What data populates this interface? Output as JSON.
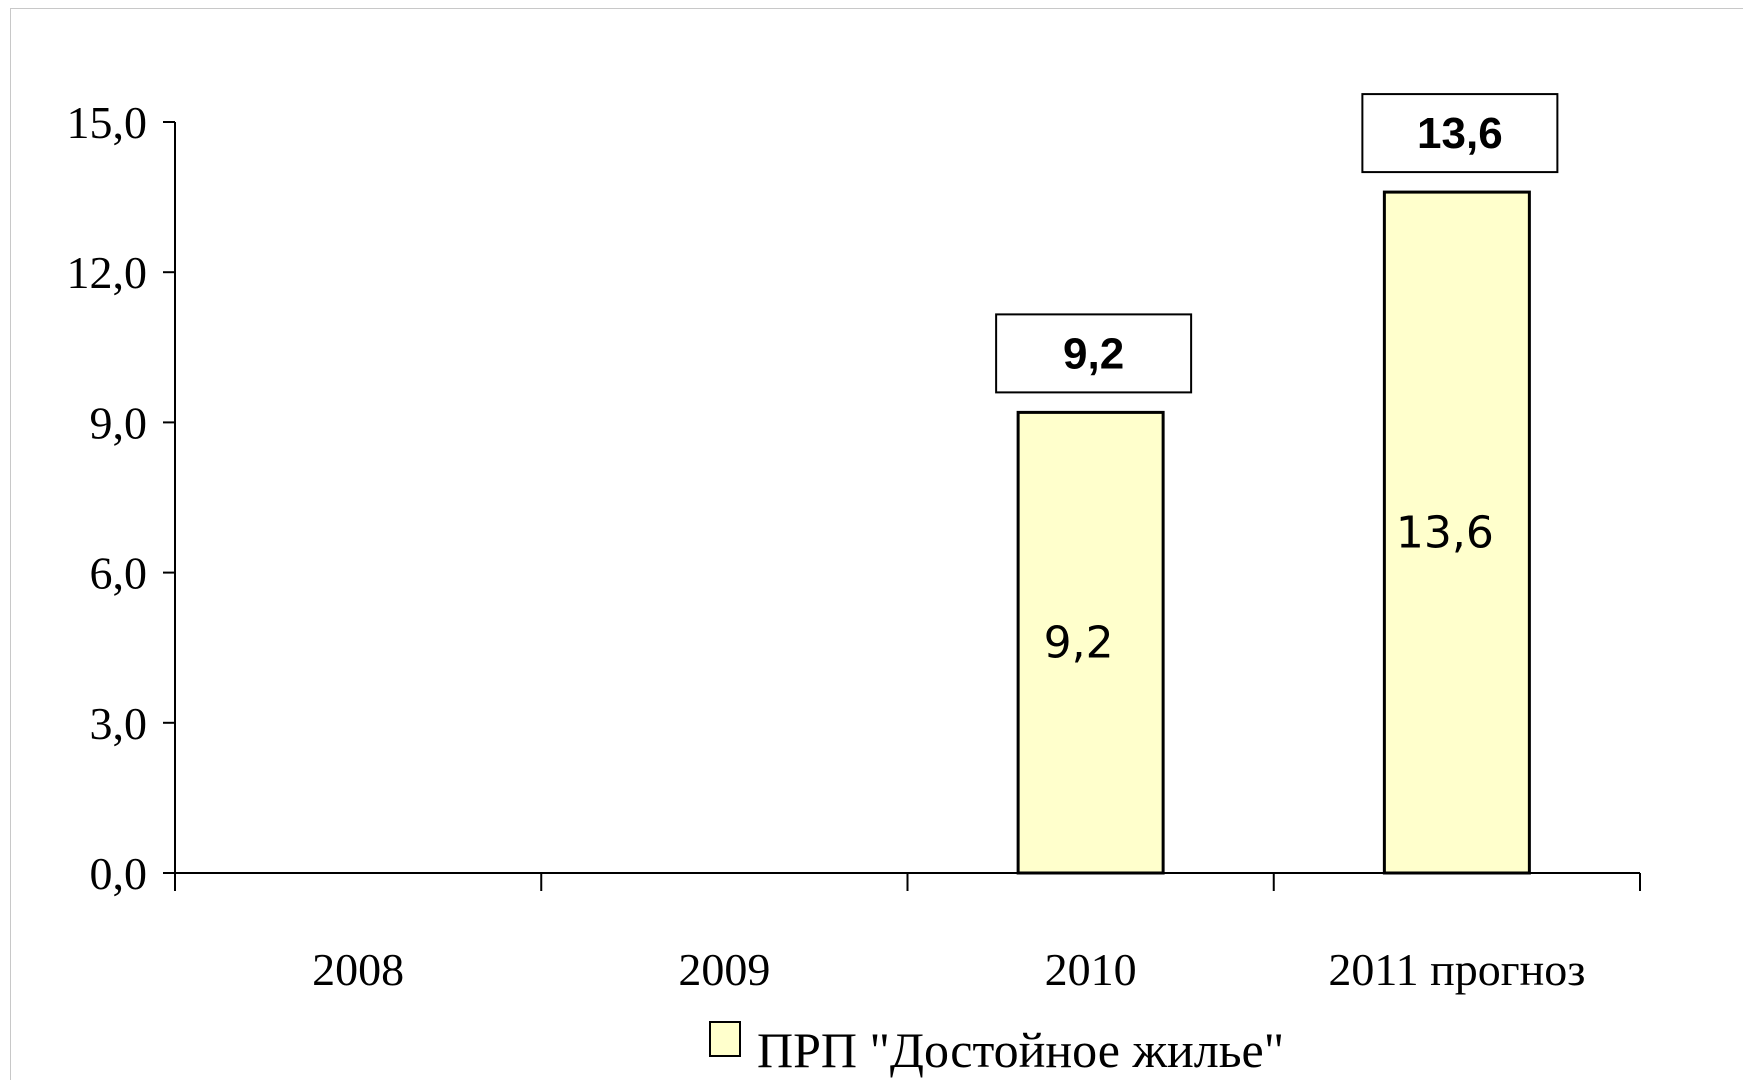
{
  "chart_data": {
    "type": "bar",
    "categories": [
      "2008",
      "2009",
      "2010",
      "2011 прогноз"
    ],
    "series": [
      {
        "name": "ПРП \"Достойное жилье\"",
        "values": [
          null,
          null,
          9.2,
          13.6
        ]
      }
    ],
    "value_labels": [
      "",
      "",
      "9,2",
      "13,6"
    ],
    "callout_labels": [
      "",
      "",
      "9,2",
      "13,6"
    ],
    "y_ticks": [
      "0,0",
      "3,0",
      "6,0",
      "9,0",
      "12,0",
      "15,0"
    ],
    "y_tick_values": [
      0,
      3,
      6,
      9,
      12,
      15
    ],
    "ylim": [
      0,
      15
    ],
    "legend_position": "bottom",
    "grid": false,
    "colors": {
      "bar_fill": "#ffffcc",
      "bar_stroke": "#000000"
    }
  }
}
